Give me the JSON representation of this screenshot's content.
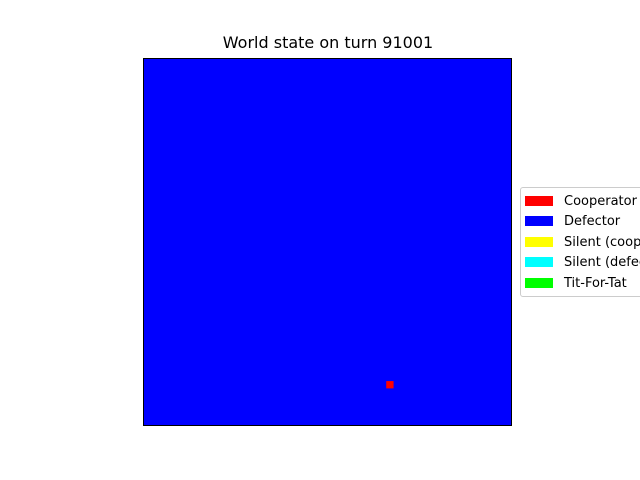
{
  "chart_data": {
    "type": "heatmap",
    "title": "World state on turn 91001",
    "xlabel": "",
    "ylabel": "",
    "grid": false,
    "grid_size": [
      50,
      50
    ],
    "background_state": "Defector",
    "cells": [
      {
        "row": 44,
        "col": 33,
        "state": "Cooperator"
      }
    ],
    "legend_position": "center-right",
    "legend": [
      {
        "label": "Cooperator",
        "color": "#ff0000"
      },
      {
        "label": "Defector",
        "color": "#0000ff"
      },
      {
        "label": "Silent (cooperator)",
        "color": "#ffff00"
      },
      {
        "label": "Silent (defector)",
        "color": "#00ffff"
      },
      {
        "label": "Tit-For-Tat",
        "color": "#00ff00"
      }
    ]
  }
}
